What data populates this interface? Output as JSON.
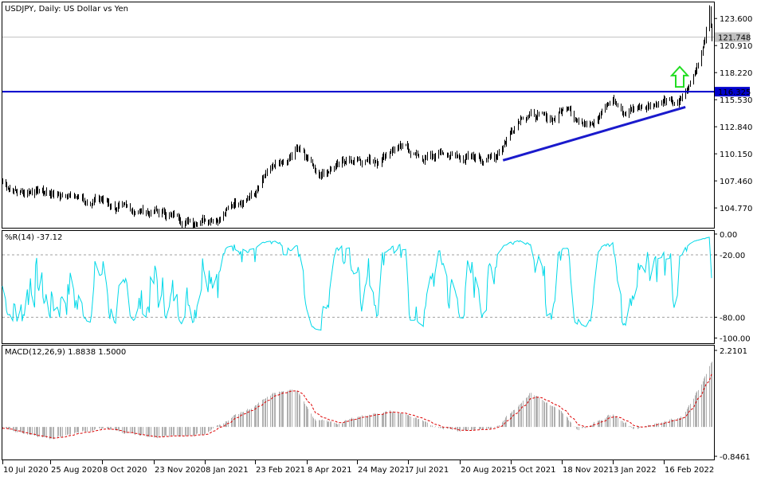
{
  "chart_data": [
    {
      "type": "ohlc",
      "title": "USDJPY, Daily:  US Dollar vs Yen",
      "symbol": "USDJPY",
      "timeframe": "Daily",
      "description": "US Dollar vs Yen",
      "y_ticks": [
        "123.600",
        "120.910",
        "118.220",
        "115.530",
        "112.840",
        "110.150",
        "107.460",
        "104.770"
      ],
      "ylim": [
        102.8,
        125.2
      ],
      "current_price": "121.748",
      "horizontal_line": "116.325",
      "line_colors": {
        "bars": "#000000",
        "horizontal": "#0000cc",
        "trendline": "#1a1acc",
        "arrow": "#22dd22"
      },
      "trendline": {
        "from": {
          "date": "28 Sep 2021",
          "value": 109.5
        },
        "to": {
          "date": "7 Mar 2022",
          "value": 114.8
        }
      },
      "arrow": {
        "date": "2 Mar 2022",
        "direction": "up",
        "value_from": 116.8,
        "value_to": 118.8
      },
      "price_path": [
        {
          "date": "10 Jul 2020",
          "value": 107.3
        },
        {
          "date": "25 Jul 2020",
          "value": 106.3
        },
        {
          "date": "10 Aug 2020",
          "value": 106.6
        },
        {
          "date": "25 Aug 2020",
          "value": 106.2
        },
        {
          "date": "10 Sep 2020",
          "value": 106.1
        },
        {
          "date": "25 Sep 2020",
          "value": 105.5
        },
        {
          "date": "8 Oct 2020",
          "value": 105.6
        },
        {
          "date": "20 Oct 2020",
          "value": 104.8
        },
        {
          "date": "5 Nov 2020",
          "value": 104.5
        },
        {
          "date": "23 Nov 2020",
          "value": 104.4
        },
        {
          "date": "10 Dec 2020",
          "value": 104.0
        },
        {
          "date": "28 Dec 2020",
          "value": 103.4
        },
        {
          "date": "8 Jan 2021",
          "value": 103.9
        },
        {
          "date": "22 Jan 2021",
          "value": 103.8
        },
        {
          "date": "5 Feb 2021",
          "value": 105.4
        },
        {
          "date": "23 Feb 2021",
          "value": 106.2
        },
        {
          "date": "8 Mar 2021",
          "value": 108.6
        },
        {
          "date": "20 Mar 2021",
          "value": 108.9
        },
        {
          "date": "31 Mar 2021",
          "value": 110.6
        },
        {
          "date": "8 Apr 2021",
          "value": 109.6
        },
        {
          "date": "20 Apr 2021",
          "value": 108.2
        },
        {
          "date": "10 May 2021",
          "value": 109.3
        },
        {
          "date": "24 May 2021",
          "value": 109.8
        },
        {
          "date": "10 Jun 2021",
          "value": 109.5
        },
        {
          "date": "24 Jun 2021",
          "value": 110.8
        },
        {
          "date": "7 Jul 2021",
          "value": 110.6
        },
        {
          "date": "20 Jul 2021",
          "value": 109.6
        },
        {
          "date": "5 Aug 2021",
          "value": 110.2
        },
        {
          "date": "20 Aug 2021",
          "value": 109.8
        },
        {
          "date": "5 Sep 2021",
          "value": 109.7
        },
        {
          "date": "20 Sep 2021",
          "value": 109.8
        },
        {
          "date": "28 Sep 2021",
          "value": 111.1
        },
        {
          "date": "5 Oct 2021",
          "value": 112.4
        },
        {
          "date": "15 Oct 2021",
          "value": 114.2
        },
        {
          "date": "25 Oct 2021",
          "value": 113.9
        },
        {
          "date": "10 Nov 2021",
          "value": 113.6
        },
        {
          "date": "24 Nov 2021",
          "value": 115.1
        },
        {
          "date": "3 Dec 2021",
          "value": 113.3
        },
        {
          "date": "18 Dec 2021",
          "value": 113.7
        },
        {
          "date": "3 Jan 2022",
          "value": 115.5
        },
        {
          "date": "12 Jan 2022",
          "value": 114.2
        },
        {
          "date": "30 Jan 2022",
          "value": 115.1
        },
        {
          "date": "16 Feb 2022",
          "value": 115.4
        },
        {
          "date": "28 Feb 2022",
          "value": 115.0
        },
        {
          "date": "10 Mar 2022",
          "value": 116.8
        },
        {
          "date": "16 Mar 2022",
          "value": 118.5
        },
        {
          "date": "21 Mar 2022",
          "value": 120.5
        },
        {
          "date": "24 Mar 2022",
          "value": 121.9
        },
        {
          "date": "28 Mar 2022",
          "value": 124.5
        },
        {
          "date": "30 Mar 2022",
          "value": 121.7
        }
      ]
    },
    {
      "type": "line",
      "title": "%R(14) -37.12",
      "y_ticks": [
        "0.00",
        "-20.00",
        "-80.00",
        "-100.00"
      ],
      "ylim": [
        -105,
        3
      ],
      "levels": [
        -20,
        -80
      ],
      "line_color": "#00d8e8"
    },
    {
      "type": "bar",
      "title": "MACD(12,26,9) 1.8838 1.5000",
      "y_ticks": [
        "2.2101",
        "-0.8461"
      ],
      "ylim": [
        -0.8461,
        2.2101
      ],
      "histogram_color": "#b0b0b0",
      "signal_color": "#dd0000",
      "macd_path": [
        {
          "date": "10 Jul 2020",
          "value": -0.05
        },
        {
          "date": "25 Aug 2020",
          "value": -0.32
        },
        {
          "date": "8 Oct 2020",
          "value": -0.05
        },
        {
          "date": "23 Nov 2020",
          "value": -0.3
        },
        {
          "date": "8 Jan 2021",
          "value": -0.2
        },
        {
          "date": "5 Feb 2021",
          "value": 0.35
        },
        {
          "date": "23 Feb 2021",
          "value": 0.6
        },
        {
          "date": "12 Mar 2021",
          "value": 1.0
        },
        {
          "date": "31 Mar 2021",
          "value": 1.05
        },
        {
          "date": "15 Apr 2021",
          "value": 0.2
        },
        {
          "date": "8 May 2021",
          "value": 0.1
        },
        {
          "date": "24 May 2021",
          "value": 0.3
        },
        {
          "date": "20 Jun 2021",
          "value": 0.45
        },
        {
          "date": "7 Jul 2021",
          "value": 0.35
        },
        {
          "date": "25 Jul 2021",
          "value": 0.05
        },
        {
          "date": "20 Aug 2021",
          "value": -0.1
        },
        {
          "date": "20 Sep 2021",
          "value": -0.05
        },
        {
          "date": "10 Oct 2021",
          "value": 0.6
        },
        {
          "date": "22 Oct 2021",
          "value": 1.0
        },
        {
          "date": "18 Nov 2021",
          "value": 0.4
        },
        {
          "date": "3 Dec 2021",
          "value": -0.1
        },
        {
          "date": "3 Jan 2022",
          "value": 0.4
        },
        {
          "date": "20 Jan 2022",
          "value": -0.05
        },
        {
          "date": "16 Feb 2022",
          "value": 0.15
        },
        {
          "date": "4 Mar 2022",
          "value": 0.3
        },
        {
          "date": "20 Mar 2022",
          "value": 1.2
        },
        {
          "date": "30 Mar 2022",
          "value": 1.9
        }
      ]
    }
  ],
  "x_axis": {
    "labels": [
      "10 Jul 2020",
      "25 Aug 2020",
      "8 Oct 2020",
      "23 Nov 2020",
      "8 Jan 2021",
      "23 Feb 2021",
      "8 Apr 2021",
      "24 May 2021",
      "7 Jul 2021",
      "20 Aug 2021",
      "5 Oct 2021",
      "18 Nov 2021",
      "3 Jan 2022",
      "16 Feb 2022"
    ]
  }
}
